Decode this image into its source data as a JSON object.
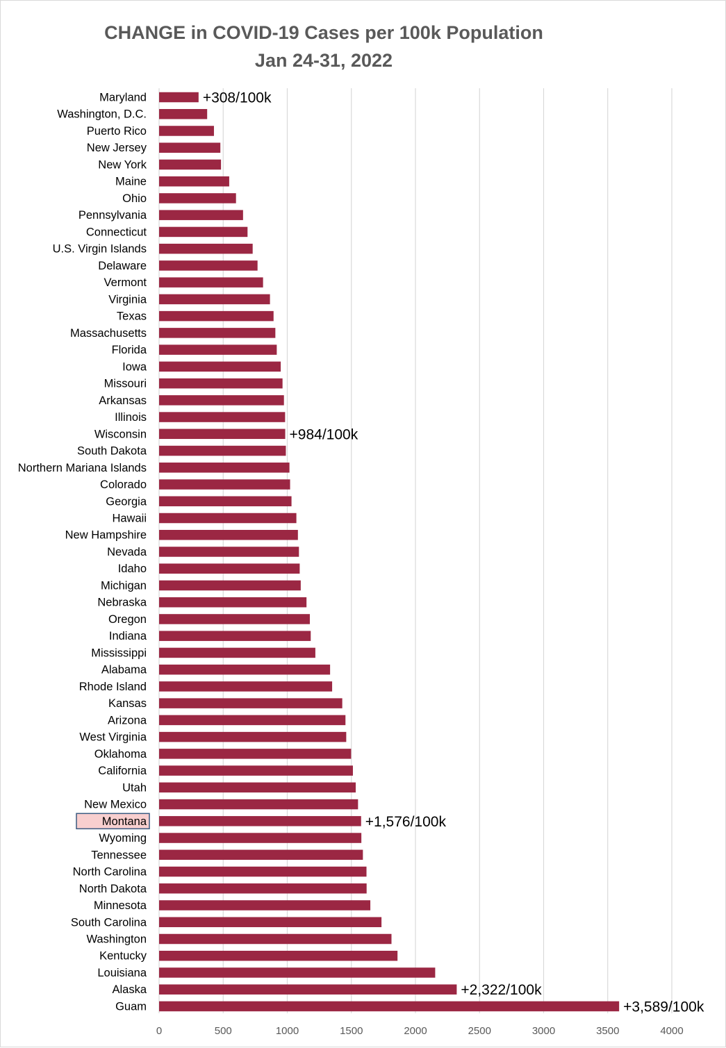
{
  "chart_data": {
    "type": "bar",
    "orientation": "horizontal",
    "title": "CHANGE in COVID-19 Cases per 100k Population",
    "subtitle": "Jan 24-31, 2022",
    "xlabel": "",
    "ylabel": "",
    "xlim": [
      0,
      4000
    ],
    "xticks": [
      0,
      500,
      1000,
      1500,
      2000,
      2500,
      3000,
      3500,
      4000
    ],
    "grid": true,
    "bar_color": "#9b2743",
    "highlight": {
      "category": "Montana",
      "fill": "#f8cfcf",
      "stroke": "#3a5a80"
    },
    "categories": [
      "Maryland",
      "Washington, D.C.",
      "Puerto Rico",
      "New Jersey",
      "New York",
      "Maine",
      "Ohio",
      "Pennsylvania",
      "Connecticut",
      "U.S. Virgin Islands",
      "Delaware",
      "Vermont",
      "Virginia",
      "Texas",
      "Massachusetts",
      "Florida",
      "Iowa",
      "Missouri",
      "Arkansas",
      "Illinois",
      "Wisconsin",
      "South Dakota",
      "Northern Mariana Islands",
      "Colorado",
      "Georgia",
      "Hawaii",
      "New Hampshire",
      "Nevada",
      "Idaho",
      "Michigan",
      "Nebraska",
      "Oregon",
      "Indiana",
      "Mississippi",
      "Alabama",
      "Rhode Island",
      "Kansas",
      "Arizona",
      "West Virginia",
      "Oklahoma",
      "California",
      "Utah",
      "New Mexico",
      "Montana",
      "Wyoming",
      "Tennessee",
      "North Carolina",
      "North Dakota",
      "Minnesota",
      "South Carolina",
      "Washington",
      "Kentucky",
      "Louisiana",
      "Alaska",
      "Guam"
    ],
    "values": [
      308,
      375,
      428,
      478,
      483,
      547,
      600,
      655,
      690,
      730,
      768,
      811,
      865,
      893,
      907,
      918,
      949,
      963,
      974,
      983,
      984,
      989,
      1017,
      1022,
      1033,
      1071,
      1083,
      1091,
      1097,
      1105,
      1150,
      1176,
      1183,
      1219,
      1334,
      1350,
      1429,
      1454,
      1460,
      1498,
      1512,
      1534,
      1552,
      1576,
      1578,
      1590,
      1618,
      1619,
      1648,
      1735,
      1813,
      1860,
      2154,
      2322,
      3589
    ],
    "annotations": [
      {
        "category": "Maryland",
        "text": "+308/100k"
      },
      {
        "category": "Wisconsin",
        "text": "+984/100k"
      },
      {
        "category": "Montana",
        "text": "+1,576/100k"
      },
      {
        "category": "Alaska",
        "text": "+2,322/100k"
      },
      {
        "category": "Guam",
        "text": "+3,589/100k"
      }
    ]
  }
}
